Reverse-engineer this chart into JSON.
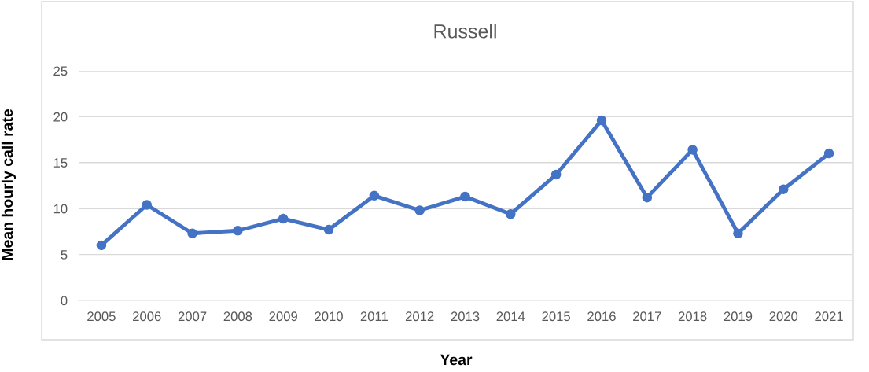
{
  "chart_data": {
    "type": "line",
    "title": "Russell",
    "xlabel": "Year",
    "ylabel": "Mean hourly call rate",
    "categories": [
      "2005",
      "2006",
      "2007",
      "2008",
      "2009",
      "2010",
      "2011",
      "2012",
      "2013",
      "2014",
      "2015",
      "2016",
      "2017",
      "2018",
      "2019",
      "2020",
      "2021"
    ],
    "series": [
      {
        "color": "#4472c4",
        "values": [
          6.0,
          10.4,
          7.3,
          7.6,
          8.9,
          7.7,
          11.4,
          9.8,
          11.3,
          9.4,
          13.7,
          19.6,
          11.2,
          16.4,
          7.3,
          12.1,
          16.0
        ]
      }
    ],
    "ylim": [
      0,
      25
    ],
    "yticks": [
      0,
      5,
      10,
      15,
      20,
      25
    ],
    "grid": "y",
    "marker": "circle",
    "line_style": "solid"
  }
}
